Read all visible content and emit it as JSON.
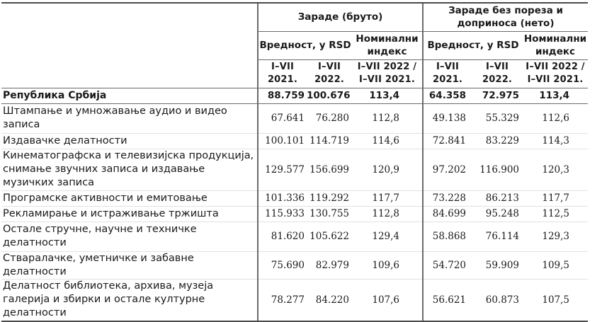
{
  "table": {
    "group_headers": {
      "gross": "Зараде (бруто)",
      "net": "Зараде без пореза и доприноса (нето)"
    },
    "sub_headers": {
      "gross_value": "Вредност, у RSD",
      "gross_index": "Номинални индекс",
      "net_value": "Вредност, у RSD",
      "net_index": "Номинални индекс"
    },
    "period_headers": {
      "gross_2021_line1": "I–VII",
      "gross_2021_line2": "2021.",
      "gross_2022_line1": "I–VII",
      "gross_2022_line2": "2022.",
      "gross_index_line1": "I–VII 2022 /",
      "gross_index_line2": "I–VII 2021.",
      "net_2021_line1": "I–VII",
      "net_2021_line2": "2021.",
      "net_2022_line1": "I–VII",
      "net_2022_line2": "2022.",
      "net_index_line1": "I–VII 2022 /",
      "net_index_line2": "I–VII 2021."
    },
    "rows": [
      {
        "label": "Република Србија",
        "gross_2021": "88.759",
        "gross_2022": "100.676",
        "gross_index": "113,4",
        "net_2021": "64.358",
        "net_2022": "72.975",
        "net_index": "113,4"
      },
      {
        "label": "Штампање и умножавање аудио и видео записа",
        "gross_2021": "67.641",
        "gross_2022": "76.280",
        "gross_index": "112,8",
        "net_2021": "49.138",
        "net_2022": "55.329",
        "net_index": "112,6"
      },
      {
        "label": "Издавачке делатности",
        "gross_2021": "100.101",
        "gross_2022": "114.719",
        "gross_index": "114,6",
        "net_2021": "72.841",
        "net_2022": "83.229",
        "net_index": "114,3"
      },
      {
        "label": "Кинематографска и телевизијска продукција, снимање звучних записа и издавање музичких записа",
        "gross_2021": "129.577",
        "gross_2022": "156.699",
        "gross_index": "120,9",
        "net_2021": "97.202",
        "net_2022": "116.900",
        "net_index": "120,3"
      },
      {
        "label": "Програмске активности и емитовање",
        "gross_2021": "101.336",
        "gross_2022": "119.292",
        "gross_index": "117,7",
        "net_2021": "73.228",
        "net_2022": "86.213",
        "net_index": "117,7"
      },
      {
        "label": "Рекламирање и истраживање тржишта",
        "gross_2021": "115.933",
        "gross_2022": "130.755",
        "gross_index": "112,8",
        "net_2021": "84.699",
        "net_2022": "95.248",
        "net_index": "112,5"
      },
      {
        "label": "Остале стручне, научне и техничке делатности",
        "gross_2021": "81.620",
        "gross_2022": "105.622",
        "gross_index": "129,4",
        "net_2021": "58.868",
        "net_2022": "76.114",
        "net_index": "129,3"
      },
      {
        "label": "Стваралачке, уметничке и забавне делатности",
        "gross_2021": "75.690",
        "gross_2022": "82.979",
        "gross_index": "109,6",
        "net_2021": "54.720",
        "net_2022": "59.909",
        "net_index": "109,5"
      },
      {
        "label": "Делатност библиотека, архива, музеја галерија и збирки и остале културне делатности",
        "gross_2021": "78.277",
        "gross_2022": "84.220",
        "gross_index": "107,6",
        "net_2021": "56.621",
        "net_2022": "60.873",
        "net_index": "107,5"
      }
    ]
  },
  "colors": {
    "text": "#1a1a1a",
    "border_strong": "#4a4a4a",
    "border": "#6b6b6b",
    "row_divider": "#e2e2e2"
  }
}
